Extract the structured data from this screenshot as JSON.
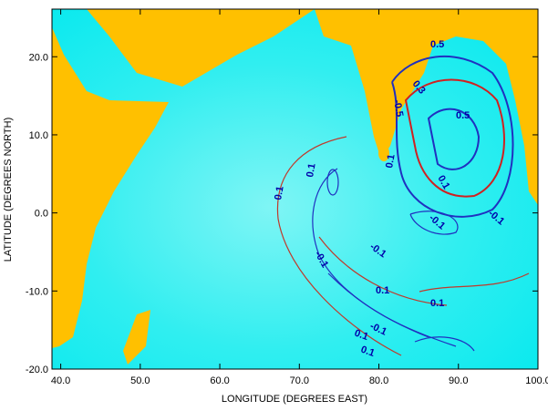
{
  "chart_data": {
    "type": "map",
    "x_label": "LONGITUDE (DEGREES EAST)",
    "y_label": "LATITUDE (DEGREES NORTH)",
    "xlim": [
      38.9,
      100
    ],
    "ylim": [
      -20,
      26.1
    ],
    "xticks": [
      {
        "value": 40,
        "label": "40.0"
      },
      {
        "value": 50,
        "label": "50.0"
      },
      {
        "value": 60,
        "label": "60.0"
      },
      {
        "value": 70,
        "label": "70.0"
      },
      {
        "value": 80,
        "label": "80.0"
      },
      {
        "value": 90,
        "label": "90.0"
      },
      {
        "value": 100,
        "label": "100.0"
      }
    ],
    "yticks": [
      {
        "value": -20,
        "label": "-20.0"
      },
      {
        "value": -10,
        "label": "-10.0"
      },
      {
        "value": 0,
        "label": "0.0"
      },
      {
        "value": 10,
        "label": "10.0"
      },
      {
        "value": 20,
        "label": "20.0"
      }
    ],
    "contour_labels": [
      "0.1",
      "0.1",
      "-0.1",
      "-0.1",
      "0.1",
      "-0.1",
      "0.1",
      "0.1",
      "0.1",
      "-0.1",
      "0.1",
      "0.5",
      "-0.5",
      "0.3",
      "0.5",
      "0.1",
      "-0.1"
    ]
  }
}
